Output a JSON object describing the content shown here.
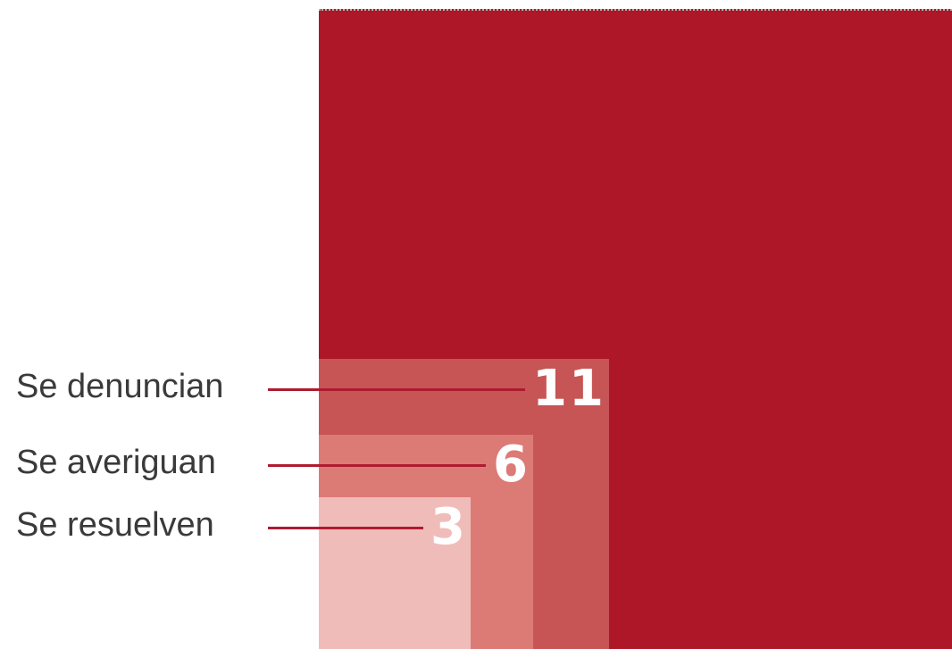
{
  "chart_data": {
    "type": "area-proportional nested squares",
    "categories": [
      "Se denuncian",
      "Se averiguan",
      "Se resuelven"
    ],
    "values": [
      11,
      6,
      3
    ],
    "value_labels": [
      "11",
      "6",
      "3"
    ],
    "colors": {
      "background_square": "#ad1727",
      "series": [
        "#c75555",
        "#dc7a76",
        "#f0bcba"
      ],
      "leader_line": "#ad1c30",
      "label_text": "#3a3a3a",
      "value_text": "#ffffff"
    }
  }
}
